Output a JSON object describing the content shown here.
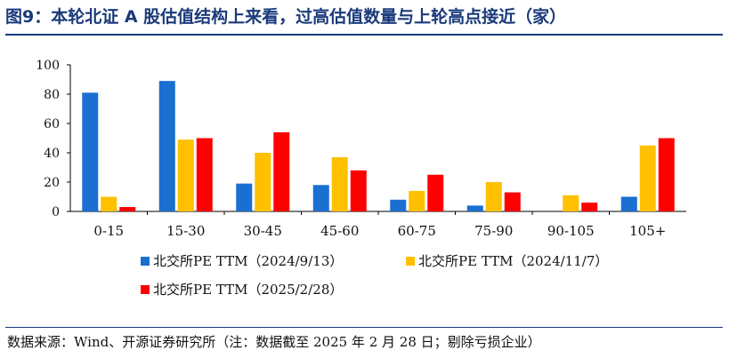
{
  "header": {
    "title": "图9：本轮北证 A 股估值结构上来看，过高估值数量与上轮高点接近（家）"
  },
  "footer": {
    "source": "数据来源：Wind、开源证券研究所（注：数据截至 2025 年 2 月 28 日；剔除亏损企业）"
  },
  "colors": {
    "accent": "#1a3a7a",
    "series": [
      "#1a6fd1",
      "#ffc000",
      "#ff0000"
    ]
  },
  "chart_data": {
    "type": "bar",
    "categories": [
      "0-15",
      "15-30",
      "30-45",
      "45-60",
      "60-75",
      "75-90",
      "90-105",
      "105+"
    ],
    "series": [
      {
        "name": "北交所PE TTM（2024/9/13）",
        "values": [
          81,
          89,
          19,
          18,
          8,
          4,
          0,
          10
        ]
      },
      {
        "name": "北交所PE TTM（2024/11/7）",
        "values": [
          10,
          49,
          40,
          37,
          14,
          20,
          11,
          45
        ]
      },
      {
        "name": "北交所PE TTM（2025/2/28）",
        "values": [
          3,
          50,
          54,
          28,
          25,
          13,
          6,
          50
        ]
      }
    ],
    "ylim": [
      0,
      100
    ],
    "yticks": [
      0,
      20,
      40,
      60,
      80,
      100
    ],
    "grid": false,
    "legend_position": "bottom-left"
  }
}
